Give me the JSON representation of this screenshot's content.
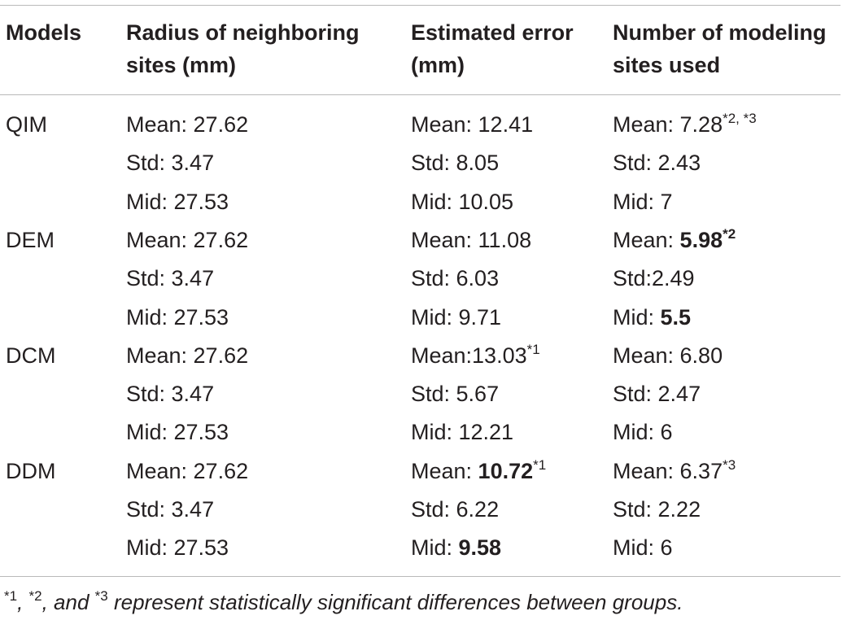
{
  "table": {
    "headers": [
      [
        "Models"
      ],
      [
        "Radius of neighboring",
        "sites (mm)"
      ],
      [
        "Estimated error",
        "(mm)"
      ],
      [
        "Number of modeling",
        "sites used"
      ]
    ],
    "rows": [
      {
        "model": "QIM",
        "radius": [
          "Mean: 27.62",
          "Std: 3.47",
          "Mid: 27.53"
        ],
        "error": [
          {
            "text": "Mean: 12.41"
          },
          {
            "text": "Std: 8.05"
          },
          {
            "text": "Mid: 10.05"
          }
        ],
        "sites": [
          {
            "text": "Mean: 7.28",
            "sup": "*2, *3"
          },
          {
            "text": "Std: 2.43"
          },
          {
            "text": "Mid: 7"
          }
        ]
      },
      {
        "model": "DEM",
        "radius": [
          "Mean: 27.62",
          "Std: 3.47",
          "Mid: 27.53"
        ],
        "error": [
          {
            "text": "Mean: 11.08"
          },
          {
            "text": "Std: 6.03"
          },
          {
            "text": "Mid: 9.71"
          }
        ],
        "sites": [
          {
            "text": "Mean: ",
            "bold": "5.98",
            "sup": "*2",
            "sup_bold": true
          },
          {
            "text": "Std:2.49"
          },
          {
            "text": "Mid: ",
            "bold": "5.5"
          }
        ]
      },
      {
        "model": "DCM",
        "radius": [
          "Mean: 27.62",
          "Std: 3.47",
          "Mid: 27.53"
        ],
        "error": [
          {
            "text": "Mean:13.03",
            "sup": "*1"
          },
          {
            "text": "Std: 5.67"
          },
          {
            "text": "Mid: 12.21"
          }
        ],
        "sites": [
          {
            "text": "Mean: 6.80"
          },
          {
            "text": "Std: 2.47"
          },
          {
            "text": "Mid: 6"
          }
        ]
      },
      {
        "model": "DDM",
        "radius": [
          "Mean: 27.62",
          "Std: 3.47",
          "Mid: 27.53"
        ],
        "error": [
          {
            "text": "Mean: ",
            "bold": "10.72",
            "sup": "*1"
          },
          {
            "text": "Std: 6.22"
          },
          {
            "text": "Mid: ",
            "bold": "9.58"
          }
        ],
        "sites": [
          {
            "text": "Mean: 6.37",
            "sup": "*3"
          },
          {
            "text": "Std: 2.22"
          },
          {
            "text": "Mid: 6"
          }
        ]
      }
    ]
  },
  "footnote": {
    "parts": [
      {
        "sup": "*1"
      },
      {
        "text": ", "
      },
      {
        "sup": "*2"
      },
      {
        "text": ", and "
      },
      {
        "sup": "*3"
      },
      {
        "text": " represent statistically significant differences between groups."
      }
    ]
  }
}
